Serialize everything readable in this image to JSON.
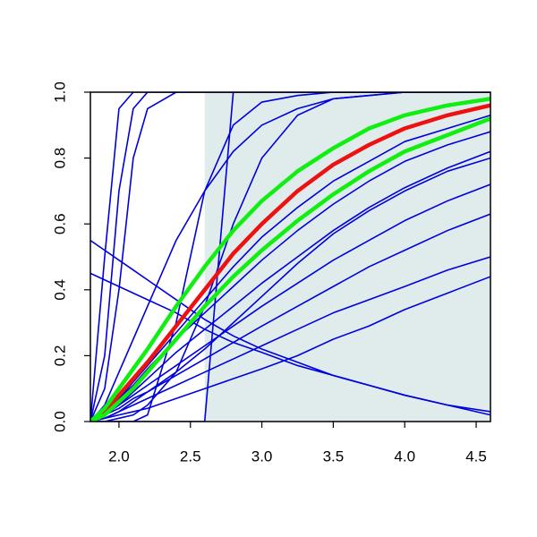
{
  "chart_data": {
    "type": "line",
    "x": [
      1.8,
      1.9,
      2.0,
      2.1,
      2.2,
      2.4,
      2.6,
      2.8,
      3.0,
      3.25,
      3.5,
      3.75,
      4.0,
      4.3,
      4.6
    ],
    "xlim": [
      1.8,
      4.6
    ],
    "ylim": [
      0,
      1
    ],
    "xticks": [
      {
        "value": 2,
        "label": "2.0"
      },
      2.5,
      {
        "value": 3,
        "label": "3.0"
      },
      3.5,
      {
        "value": 4,
        "label": "4.0"
      },
      4.5
    ],
    "yticks": [
      {
        "value": 0,
        "label": "0.0"
      },
      0.2,
      0.4,
      0.6,
      0.8,
      {
        "value": 1,
        "label": "1.0"
      }
    ],
    "shade": {
      "x": [
        2.6,
        4.6
      ],
      "color": "#e0ecec"
    },
    "series": [
      {
        "color": "#0000dd",
        "values": [
          0,
          0.5,
          0.95,
          1,
          1,
          1,
          1,
          1,
          1,
          1,
          1,
          1,
          1,
          1,
          1
        ]
      },
      {
        "color": "#0000dd",
        "values": [
          0,
          0.2,
          0.7,
          0.95,
          1,
          1,
          1,
          1,
          1,
          1,
          1,
          1,
          1,
          1,
          1
        ]
      },
      {
        "color": "#0000dd",
        "values": [
          0,
          0.1,
          0.4,
          0.8,
          0.95,
          1,
          1,
          1,
          1,
          1,
          1,
          1,
          1,
          1,
          1
        ]
      },
      {
        "color": "#0000dd",
        "values": [
          0,
          0,
          0,
          0,
          0,
          0,
          0,
          1,
          1,
          1,
          1,
          1,
          1,
          1,
          1
        ]
      },
      {
        "color": "#0000dd",
        "values": [
          0,
          0.01,
          0.03,
          0.05,
          0.07,
          0.11,
          0.15,
          0.19,
          0.23,
          0.28,
          0.33,
          0.37,
          0.41,
          0.46,
          0.5
        ]
      },
      {
        "color": "#0000dd",
        "values": [
          0,
          0.02,
          0.04,
          0.07,
          0.09,
          0.14,
          0.19,
          0.24,
          0.29,
          0.35,
          0.41,
          0.47,
          0.52,
          0.58,
          0.63
        ]
      },
      {
        "color": "#0000dd",
        "values": [
          0,
          0.02,
          0.05,
          0.08,
          0.11,
          0.17,
          0.23,
          0.29,
          0.35,
          0.42,
          0.49,
          0.55,
          0.61,
          0.67,
          0.72
        ]
      },
      {
        "color": "#0000dd",
        "values": [
          0,
          0.02,
          0.05,
          0.09,
          0.13,
          0.21,
          0.28,
          0.35,
          0.42,
          0.5,
          0.58,
          0.65,
          0.71,
          0.77,
          0.82
        ]
      },
      {
        "color": "#0000dd",
        "values": [
          0,
          0.03,
          0.07,
          0.11,
          0.16,
          0.25,
          0.33,
          0.41,
          0.49,
          0.58,
          0.66,
          0.73,
          0.79,
          0.84,
          0.88
        ]
      },
      {
        "color": "#0000dd",
        "values": [
          0,
          0.01,
          0.02,
          0.03,
          0.04,
          0.07,
          0.1,
          0.13,
          0.16,
          0.2,
          0.25,
          0.29,
          0.34,
          0.39,
          0.44
        ]
      },
      {
        "color": "#0000dd",
        "values": [
          0,
          0,
          0.01,
          0.02,
          0.05,
          0.15,
          0.35,
          0.6,
          0.8,
          0.93,
          0.98,
          0.99,
          1,
          1,
          1
        ]
      },
      {
        "color": "#0000dd",
        "values": [
          0.55,
          0.52,
          0.49,
          0.46,
          0.43,
          0.37,
          0.31,
          0.26,
          0.22,
          0.18,
          0.14,
          0.11,
          0.08,
          0.05,
          0.02
        ]
      },
      {
        "color": "#0000dd",
        "values": [
          0.45,
          0.43,
          0.41,
          0.39,
          0.37,
          0.33,
          0.28,
          0.24,
          0.21,
          0.17,
          0.14,
          0.11,
          0.08,
          0.05,
          0.03
        ]
      },
      {
        "color": "#0000dd",
        "values": [
          0,
          0.05,
          0.15,
          0.25,
          0.35,
          0.55,
          0.7,
          0.82,
          0.9,
          0.95,
          0.98,
          0.99,
          1,
          1,
          1
        ]
      },
      {
        "color": "#0000dd",
        "values": [
          0,
          0,
          0,
          0,
          0.02,
          0.3,
          0.7,
          0.9,
          0.97,
          0.99,
          1,
          1,
          1,
          1,
          1
        ]
      },
      {
        "color": "#0000dd",
        "values": [
          0,
          0.03,
          0.07,
          0.12,
          0.17,
          0.27,
          0.37,
          0.47,
          0.56,
          0.65,
          0.73,
          0.79,
          0.85,
          0.89,
          0.93
        ]
      },
      {
        "color": "#0000dd",
        "values": [
          0,
          0.01,
          0.03,
          0.06,
          0.09,
          0.15,
          0.22,
          0.3,
          0.38,
          0.48,
          0.57,
          0.64,
          0.7,
          0.76,
          0.8
        ]
      },
      {
        "color": "#ee1111",
        "values": [
          0,
          0.03,
          0.08,
          0.13,
          0.18,
          0.29,
          0.4,
          0.51,
          0.6,
          0.7,
          0.78,
          0.84,
          0.89,
          0.93,
          0.96
        ]
      },
      {
        "color": "#11ee11",
        "values": [
          0,
          0.04,
          0.1,
          0.16,
          0.22,
          0.35,
          0.47,
          0.58,
          0.67,
          0.76,
          0.83,
          0.89,
          0.93,
          0.96,
          0.98
        ]
      },
      {
        "color": "#11ee11",
        "values": [
          0,
          0.02,
          0.06,
          0.1,
          0.15,
          0.25,
          0.35,
          0.44,
          0.52,
          0.61,
          0.69,
          0.76,
          0.82,
          0.87,
          0.92
        ]
      }
    ]
  }
}
